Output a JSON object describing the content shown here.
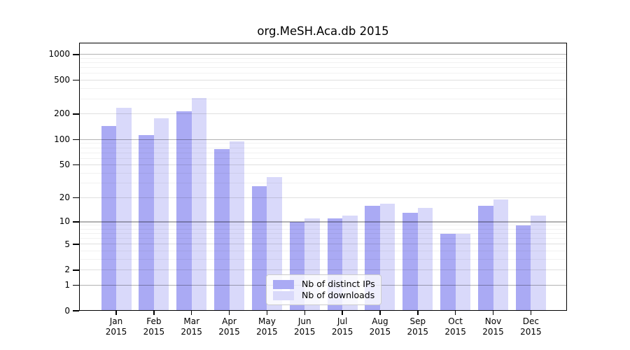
{
  "chart_data": {
    "type": "bar",
    "title": "org.MeSH.Aca.db 2015",
    "categories": [
      "Jan",
      "Feb",
      "Mar",
      "Apr",
      "May",
      "Jun",
      "Jul",
      "Aug",
      "Sep",
      "Oct",
      "Nov",
      "Dec"
    ],
    "x_year_label": "2015",
    "series": [
      {
        "name": "Nb of distinct IPs",
        "color": "#aaaaf4",
        "values": [
          145,
          112,
          215,
          77,
          28,
          10,
          11,
          16,
          13,
          7,
          16,
          9
        ]
      },
      {
        "name": "Nb of downloads",
        "color": "#d9d9fa",
        "values": [
          235,
          178,
          310,
          95,
          36,
          11,
          12,
          17,
          15,
          7,
          19,
          12
        ]
      }
    ],
    "y_ticks": [
      0,
      1,
      2,
      5,
      10,
      20,
      50,
      100,
      200,
      500,
      1000
    ],
    "y_major_gridlines": [
      1,
      10,
      100,
      1000
    ],
    "scale": "log1p",
    "ylim": [
      0,
      1400
    ],
    "grid": true,
    "legend_position": "bottom-center",
    "frame_color": "#000000",
    "background_color": "#ffffff"
  }
}
